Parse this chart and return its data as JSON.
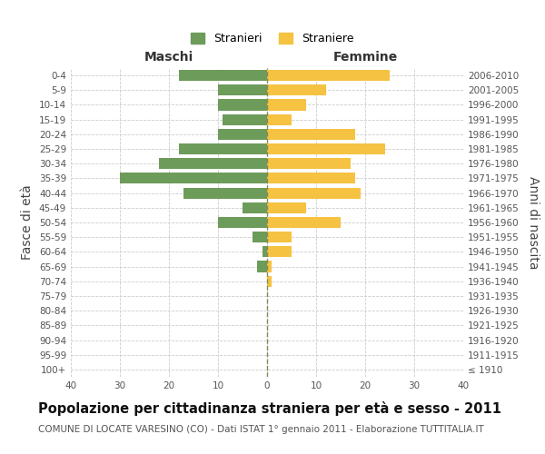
{
  "age_groups": [
    "100+",
    "95-99",
    "90-94",
    "85-89",
    "80-84",
    "75-79",
    "70-74",
    "65-69",
    "60-64",
    "55-59",
    "50-54",
    "45-49",
    "40-44",
    "35-39",
    "30-34",
    "25-29",
    "20-24",
    "15-19",
    "10-14",
    "5-9",
    "0-4"
  ],
  "birth_years": [
    "≤ 1910",
    "1911-1915",
    "1916-1920",
    "1921-1925",
    "1926-1930",
    "1931-1935",
    "1936-1940",
    "1941-1945",
    "1946-1950",
    "1951-1955",
    "1956-1960",
    "1961-1965",
    "1966-1970",
    "1971-1975",
    "1976-1980",
    "1981-1985",
    "1986-1990",
    "1991-1995",
    "1996-2000",
    "2001-2005",
    "2006-2010"
  ],
  "maschi": [
    0,
    0,
    0,
    0,
    0,
    0,
    0,
    2,
    1,
    3,
    10,
    5,
    17,
    30,
    22,
    18,
    10,
    9,
    10,
    10,
    18
  ],
  "femmine": [
    0,
    0,
    0,
    0,
    0,
    0,
    1,
    1,
    5,
    5,
    15,
    8,
    19,
    18,
    17,
    24,
    18,
    5,
    8,
    12,
    25
  ],
  "maschi_color": "#6d9b5a",
  "femmine_color": "#f5c242",
  "grid_color": "#cccccc",
  "center_line_color": "#888855",
  "title": "Popolazione per cittadinanza straniera per età e sesso - 2011",
  "subtitle": "COMUNE DI LOCATE VARESINO (CO) - Dati ISTAT 1° gennaio 2011 - Elaborazione TUTTITALIA.IT",
  "ylabel_left": "Fasce di età",
  "ylabel_right": "Anni di nascita",
  "xlabel_left": "Maschi",
  "xlabel_right": "Femmine",
  "legend_maschi": "Stranieri",
  "legend_femmine": "Straniere",
  "xlim": 40,
  "title_fontsize": 10.5,
  "subtitle_fontsize": 7.5,
  "tick_fontsize": 7.5,
  "label_fontsize": 10,
  "legend_fontsize": 9
}
